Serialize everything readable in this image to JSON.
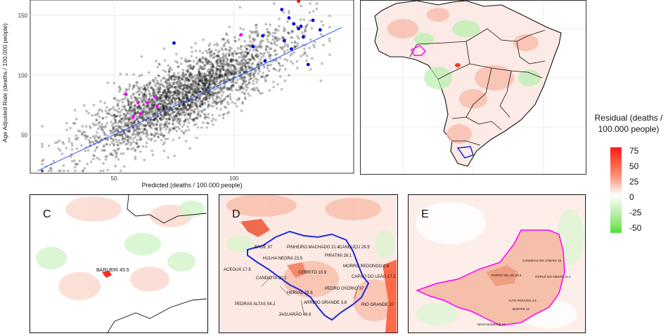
{
  "chart_data": {
    "type": "scatter",
    "xlabel": "Predicted (deaths / 100.000 people)",
    "ylabel": "Age Adjusted Rate (deaths / 100.000 people)",
    "xlim": [
      15,
      150
    ],
    "ylim": [
      18,
      163
    ],
    "x_ticks": [
      50,
      100
    ],
    "y_ticks": [
      50,
      100,
      150
    ],
    "grid": true,
    "fit_line": {
      "x": [
        18,
        145
      ],
      "y": [
        20,
        140
      ]
    },
    "series": [
      {
        "color": "#111111",
        "count": 2800,
        "x_range": [
          20,
          140
        ],
        "y_range": [
          20,
          160
        ]
      },
      {
        "color": "#0000dd",
        "x": [
          75,
          120,
          123,
          125,
          127,
          128,
          121,
          133,
          136,
          108,
          113,
          112,
          129,
          124,
          131
        ],
        "y": [
          127,
          155,
          148,
          143,
          139,
          141,
          129,
          146,
          138,
          124,
          112,
          133,
          132,
          122,
          109
        ]
      },
      {
        "color": "#ff00ff",
        "x": [
          55,
          58,
          61,
          60,
          64,
          67,
          68,
          103
        ],
        "y": [
          84,
          65,
          68,
          77,
          77,
          82,
          74,
          134
        ]
      },
      {
        "color": "#ff0000",
        "x": [
          127
        ],
        "y": [
          162
        ]
      }
    ]
  },
  "legend": {
    "title": "Residual (deaths / 100.000 people)",
    "ticks": [
      "75",
      "50",
      "25",
      "0",
      "-25",
      "-50"
    ],
    "colors": {
      "high": "#ff1a1a",
      "mid": "#ffffff",
      "low": "#55dd33"
    }
  },
  "panels": {
    "c": {
      "letter": "C",
      "labels": [
        {
          "text": "BARUERI 45.5"
        }
      ]
    },
    "d": {
      "letter": "D",
      "labels": [
        {
          "text": "PINHEIRO MACHADO 21.4"
        },
        {
          "text": "CANGUÇU 29.5"
        },
        {
          "text": "PIRATINI 28.1"
        },
        {
          "text": "HULHA NEGRA 23.5"
        },
        {
          "text": "ACEGUÁ 17.5"
        },
        {
          "text": "CANDIOTA 20.2"
        },
        {
          "text": "CERRITO 10.9"
        },
        {
          "text": "MORRO REDONDO 2.6"
        },
        {
          "text": "CAPÃO DO LEÃO 17.2"
        },
        {
          "text": "PEDRO OSÓRIO 37"
        },
        {
          "text": "HERVAL 25.6"
        },
        {
          "text": "PEDRAS ALTAS 54.2"
        },
        {
          "text": "ARROIO GRANDE 3.8"
        },
        {
          "text": "RIO GRANDE 37"
        },
        {
          "text": "JAGUARÃO 46.6"
        },
        {
          "text": "BAGÉ 37"
        }
      ]
    },
    "e": {
      "letter": "E",
      "labels": [
        {
          "text": "CANDEIAS DO JAMARI 15"
        },
        {
          "text": "PORTO VELHO 29.2"
        },
        {
          "text": "ITAPUÃ DO OESTE 22.4"
        },
        {
          "text": "ALTO PARAÍSO 4.5"
        },
        {
          "text": "BURITIS 13"
        },
        {
          "text": "NOVA MAMORÉ 31"
        }
      ]
    }
  }
}
